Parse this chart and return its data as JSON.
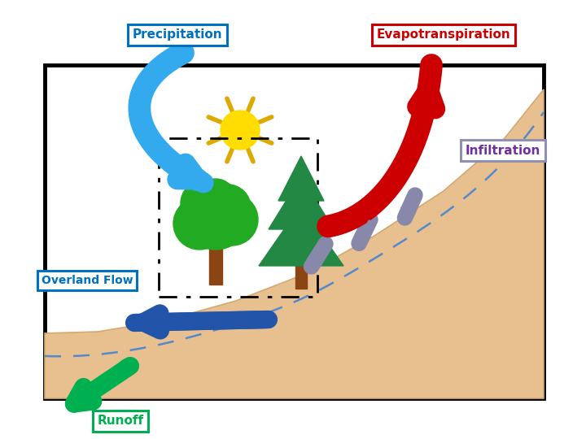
{
  "bg_color": "#ffffff",
  "labels": {
    "precipitation": "Precipitation",
    "evapotranspiration": "Evapotranspiration",
    "infiltration": "Infiltration",
    "overland_flow": "Overland Flow",
    "runoff": "Runoff"
  },
  "label_colors": {
    "precipitation": "#0070c0",
    "evapotranspiration": "#cc0000",
    "infiltration": "#7030a0",
    "overland_flow": "#0070c0",
    "runoff": "#00b050"
  },
  "label_box_colors": {
    "precipitation": "#0070c0",
    "evapotranspiration": "#cc0000",
    "infiltration": "#9090b0",
    "overland_flow": "#0070c0",
    "runoff": "#00b050"
  },
  "arrow_colors": {
    "precipitation": "#33aaee",
    "evapotranspiration": "#cc0000",
    "infiltration": "#8888aa",
    "overland_flow": "#2255aa",
    "runoff": "#00b050"
  },
  "terrain_color": "#e8c090",
  "terrain_edge": "#d4a870",
  "tree_trunk": "#8b4513",
  "tree_foliage_round": "#22aa22",
  "tree_foliage_pine": "#228844",
  "sun_color": "#ffdd00",
  "sun_ray_color": "#ddaa00",
  "dashed_line_color": "#5588cc",
  "border_lw": 3.5
}
